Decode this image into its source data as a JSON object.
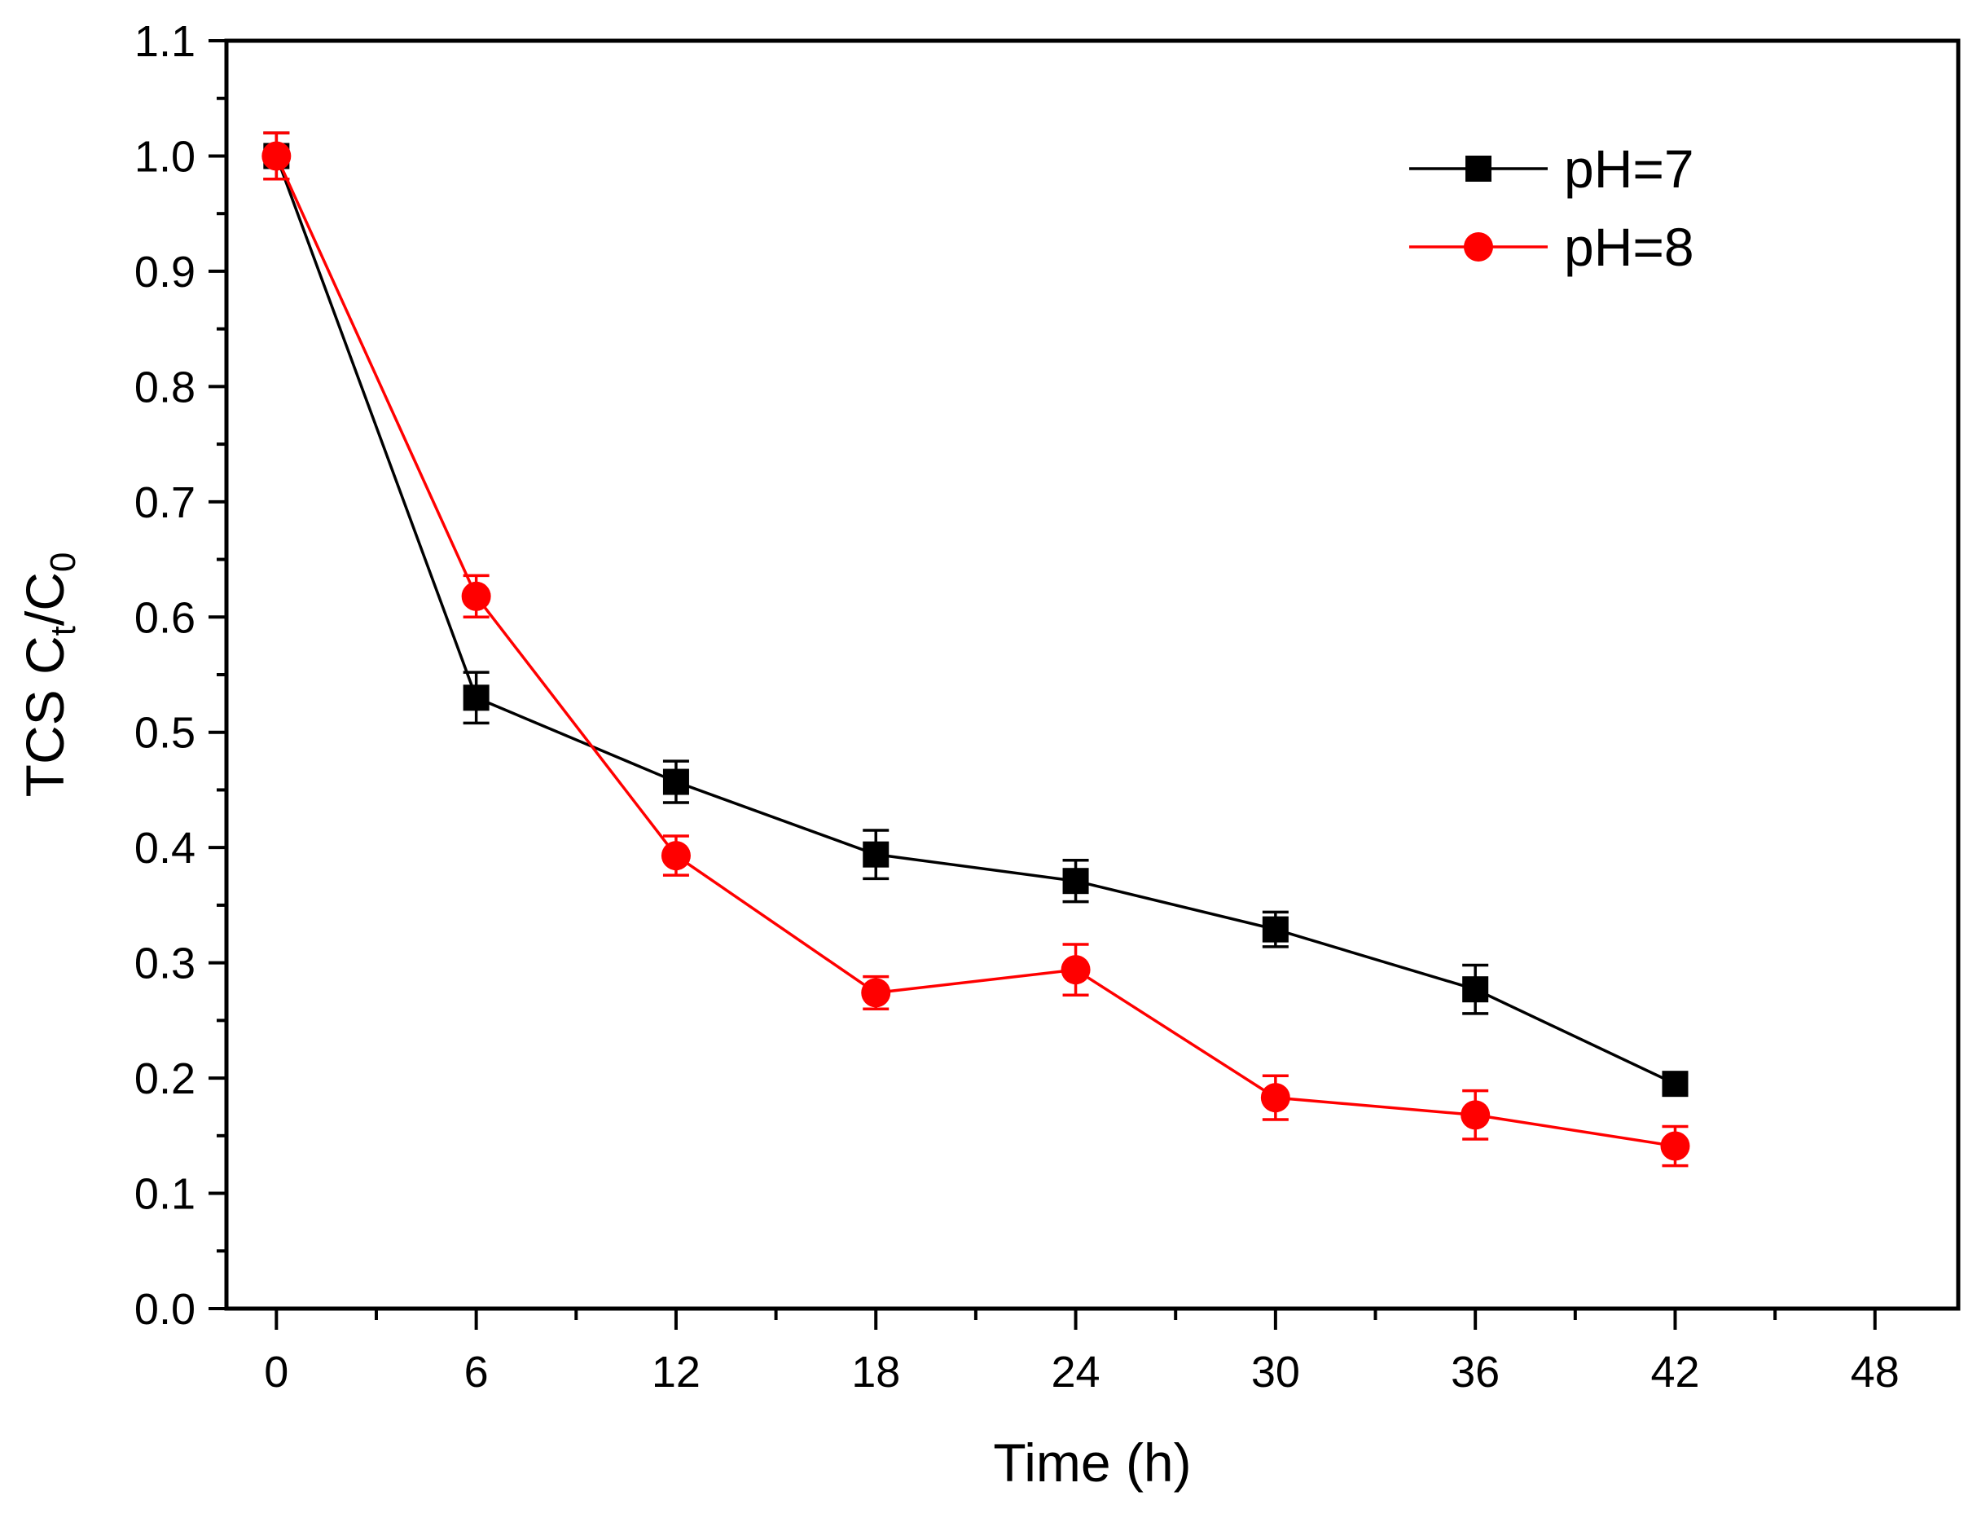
{
  "chart_data": {
    "type": "line",
    "title": "",
    "xlabel": "Time (h)",
    "ylabel": {
      "main": "TCS C",
      "sub1": "t",
      "mid": "/C",
      "sub2": "0"
    },
    "xlim": [
      -1.5,
      50.5
    ],
    "ylim": [
      0.0,
      1.1
    ],
    "xticks": [
      "0",
      "6",
      "12",
      "18",
      "24",
      "30",
      "36",
      "42",
      "48"
    ],
    "xtick_values": [
      0,
      6,
      12,
      18,
      24,
      30,
      36,
      42,
      48
    ],
    "x_minor_step": 3,
    "yticks": [
      "0.0",
      "0.1",
      "0.2",
      "0.3",
      "0.4",
      "0.5",
      "0.6",
      "0.7",
      "0.8",
      "0.9",
      "1.0",
      "1.1"
    ],
    "ytick_values": [
      0.0,
      0.1,
      0.2,
      0.3,
      0.4,
      0.5,
      0.6,
      0.7,
      0.8,
      0.9,
      1.0,
      1.1
    ],
    "grid": false,
    "legend_position": "top-right",
    "series": [
      {
        "name": "pH=7",
        "color": "#000000",
        "marker": "square",
        "x": [
          0,
          6,
          12,
          18,
          24,
          30,
          36,
          42
        ],
        "y": [
          1.0,
          0.53,
          0.457,
          0.394,
          0.371,
          0.329,
          0.277,
          0.195
        ],
        "err": [
          0.02,
          0.022,
          0.018,
          0.021,
          0.018,
          0.015,
          0.021,
          0.008
        ]
      },
      {
        "name": "pH=8",
        "color": "#ff0000",
        "marker": "circle",
        "x": [
          0,
          6,
          12,
          18,
          24,
          30,
          36,
          42
        ],
        "y": [
          1.0,
          0.618,
          0.393,
          0.274,
          0.294,
          0.183,
          0.168,
          0.141
        ],
        "err": [
          0.02,
          0.018,
          0.017,
          0.014,
          0.022,
          0.019,
          0.021,
          0.017
        ]
      }
    ]
  }
}
